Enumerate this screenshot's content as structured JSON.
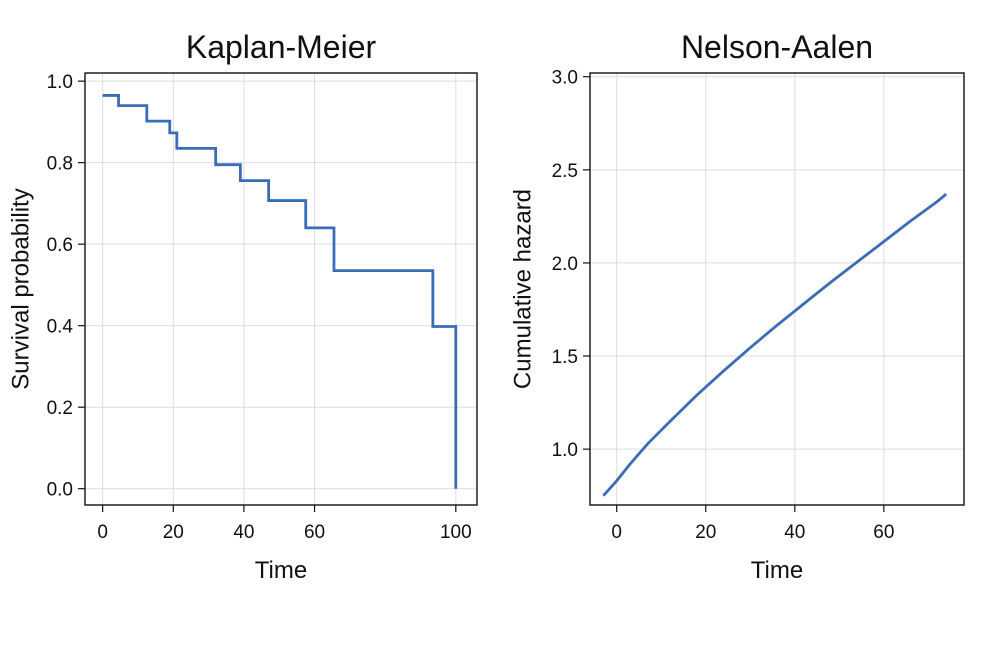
{
  "chart_data": [
    {
      "type": "line",
      "step": true,
      "title": "Kaplan-Meier",
      "xlabel": "Time",
      "ylabel": "Survival probability",
      "xlim": [
        -5,
        106
      ],
      "ylim": [
        -0.04,
        1.02
      ],
      "xticks": [
        0,
        20,
        40,
        60,
        100
      ],
      "yticks": [
        0.0,
        0.2,
        0.4,
        0.6,
        0.8,
        1.0
      ],
      "xtick_labels": [
        "0",
        "20",
        "40",
        "60",
        "100"
      ],
      "ytick_labels": [
        "0.0",
        "0.2",
        "0.4",
        "0.6",
        "0.8",
        "1.0"
      ],
      "grid": true,
      "color": "#3a6db5",
      "series": [
        {
          "x": [
            0,
            4.5,
            4.5,
            12.5,
            12.5,
            19.0,
            19.0,
            21.0,
            21.0,
            32.0,
            32.0,
            39.0,
            39.0,
            47.0,
            47.0,
            57.5,
            57.5,
            65.5,
            65.5,
            93.5,
            93.5,
            100,
            100
          ],
          "y": [
            0.965,
            0.965,
            0.94,
            0.94,
            0.902,
            0.902,
            0.873,
            0.873,
            0.835,
            0.835,
            0.795,
            0.795,
            0.756,
            0.756,
            0.707,
            0.707,
            0.64,
            0.64,
            0.535,
            0.535,
            0.398,
            0.398,
            0.0
          ]
        }
      ]
    },
    {
      "type": "line",
      "title": "Nelson-Aalen",
      "xlabel": "Time",
      "ylabel": "Cumulative hazard",
      "xlim": [
        -6,
        78
      ],
      "ylim": [
        0.7,
        3.02
      ],
      "xticks": [
        0,
        20,
        40,
        60
      ],
      "yticks": [
        1.0,
        1.5,
        2.0,
        2.5,
        3.0
      ],
      "xtick_labels": [
        "0",
        "20",
        "40",
        "60"
      ],
      "ytick_labels": [
        "1.0",
        "1.5",
        "2.0",
        "2.5",
        "3.0"
      ],
      "grid": true,
      "color": "#3a6db5",
      "series": [
        {
          "x": [
            -3,
            0,
            3,
            7,
            12,
            18,
            24,
            30,
            36,
            42,
            48,
            54,
            60,
            66,
            72,
            74
          ],
          "y": [
            0.75,
            0.83,
            0.92,
            1.03,
            1.15,
            1.29,
            1.42,
            1.545,
            1.665,
            1.78,
            1.895,
            2.005,
            2.115,
            2.225,
            2.33,
            2.37
          ]
        }
      ]
    }
  ]
}
